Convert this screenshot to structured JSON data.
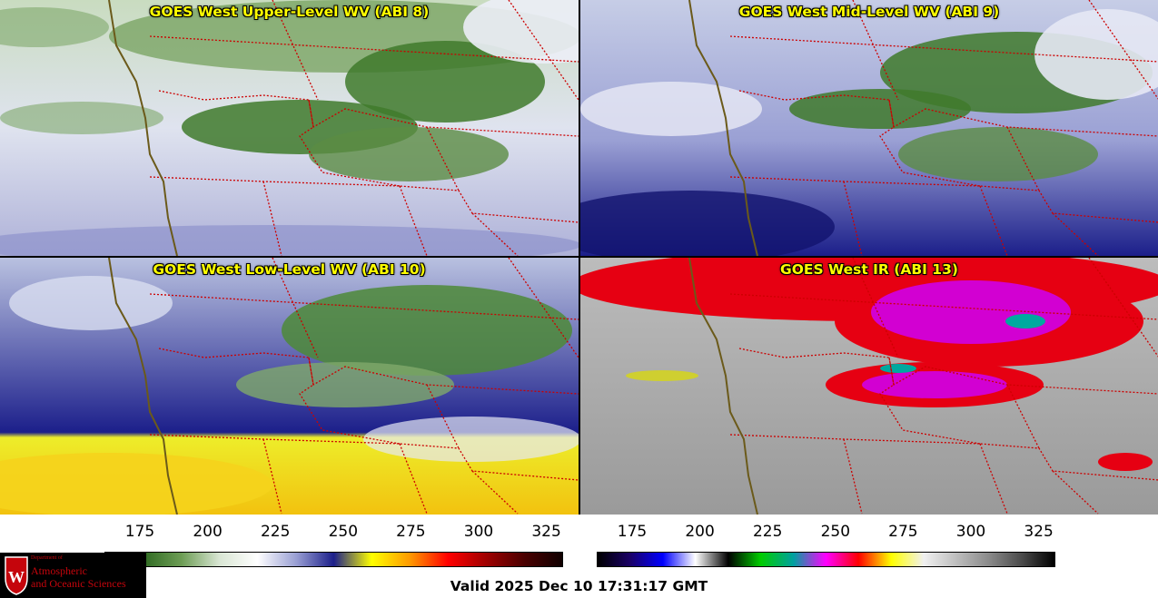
{
  "panels": [
    {
      "title": "GOES West Upper-Level WV (ABI 8)",
      "scheme": "wv_upper"
    },
    {
      "title": "GOES West Mid-Level WV (ABI 9)",
      "scheme": "wv_mid"
    },
    {
      "title": "GOES West Low-Level WV (ABI 10)",
      "scheme": "wv_low"
    },
    {
      "title": "GOES West IR (ABI 13)",
      "scheme": "ir"
    }
  ],
  "colorbars": {
    "wv": {
      "ticks": [
        "175",
        "200",
        "225",
        "250",
        "275",
        "300",
        "325"
      ],
      "colors": [
        "#184018",
        "#2f6a22",
        "#6d9d55",
        "#d9e6d4",
        "#ffffff",
        "#9aa0d4",
        "#1c1f8a",
        "#ffff00",
        "#ff9900",
        "#ff0000",
        "#a00000",
        "#4a0000",
        "#100000"
      ]
    },
    "ir": {
      "ticks": [
        "175",
        "200",
        "225",
        "250",
        "275",
        "300",
        "325"
      ],
      "colors": [
        "#000000",
        "#1a0066",
        "#0000ff",
        "#ffffff",
        "#000000",
        "#00cc00",
        "#00a0a0",
        "#ff00ff",
        "#ff0000",
        "#ffff00",
        "#f0f0f0",
        "#bdbdbd",
        "#8a8a8a",
        "#4a4a4a",
        "#000000"
      ]
    }
  },
  "logo": {
    "line1": "Department of",
    "line2": "Atmospheric",
    "line3": "and Oceanic Sciences",
    "emblem": "W"
  },
  "footer": {
    "valid_text": "Valid 2025 Dec 10 17:31:17 GMT"
  },
  "colors": {
    "title_text": "#ffff00",
    "border_line": "#cc0000",
    "coast_line": "#6b5a1a"
  }
}
